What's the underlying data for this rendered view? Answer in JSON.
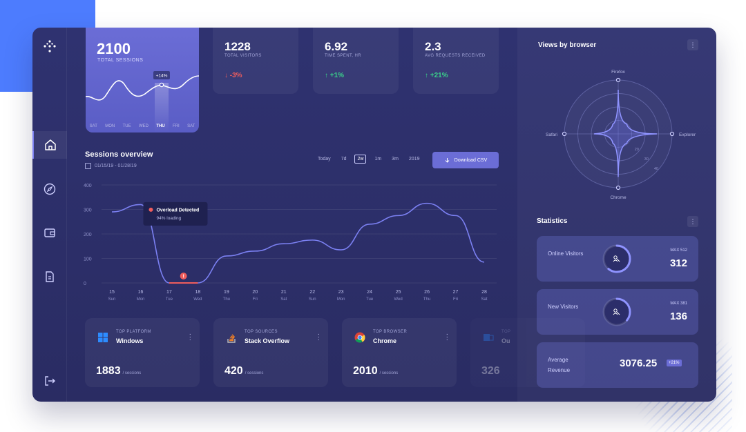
{
  "top_sessions": {
    "value": "2100",
    "label": "TOTAL SESSIONS",
    "badge": "+14%",
    "days": [
      "SAT",
      "MON",
      "TUE",
      "WED",
      "THU",
      "FRI",
      "SAT"
    ],
    "active_day": "THU"
  },
  "stats": [
    {
      "value": "1228",
      "label": "TOTAL VISITORS",
      "change": "↓ -3%",
      "direction": "down"
    },
    {
      "value": "6.92",
      "label": "TIME SPENT, HR",
      "change": "↑ +1%",
      "direction": "up"
    },
    {
      "value": "2.3",
      "label": "AVG REQUESTS RECEIVED",
      "change": "↑ +21%",
      "direction": "up"
    }
  ],
  "overview": {
    "title": "Sessions overview",
    "date_range": "01/15/19 - 01/28/19",
    "ranges": [
      "Today",
      "7d",
      "2w",
      "1m",
      "3m",
      "2019"
    ],
    "selected_range": "2w",
    "download_label": "Download CSV",
    "tooltip_title": "Overload Detected",
    "tooltip_sub": "94% loading"
  },
  "chart_data": {
    "type": "line",
    "yticks": [
      "400",
      "300",
      "200",
      "100",
      "0"
    ],
    "ylim": [
      0,
      400
    ],
    "x": [
      "15",
      "16",
      "17",
      "18",
      "19",
      "20",
      "21",
      "22",
      "23",
      "24",
      "25",
      "26",
      "27",
      "28"
    ],
    "x_sub": [
      "Sun",
      "Mon",
      "Tue",
      "Wed",
      "Thu",
      "Fri",
      "Sat",
      "Sun",
      "Mon",
      "Tue",
      "Wed",
      "Thu",
      "Fri",
      "Sat"
    ],
    "values": [
      290,
      320,
      0,
      0,
      110,
      130,
      160,
      175,
      135,
      240,
      275,
      325,
      275,
      85
    ]
  },
  "bottom_cards": [
    {
      "small": "TOP PLATFORM",
      "name": "Windows",
      "value": "1883",
      "unit": "/ sessions",
      "icon": "windows-icon"
    },
    {
      "small": "TOP SOURCES",
      "name": "Stack Overflow",
      "value": "420",
      "unit": "/ sessions",
      "icon": "stackoverflow-icon"
    },
    {
      "small": "TOP BROWSER",
      "name": "Chrome",
      "value": "2010",
      "unit": "/ sessions",
      "icon": "chrome-icon"
    },
    {
      "small": "TOP",
      "name": "Ou",
      "value": "326",
      "unit": "",
      "icon": "outlook-icon"
    }
  ],
  "browser_views": {
    "title": "Views by browser",
    "axes": [
      "Firefox",
      "Explorer",
      "Chrome",
      "Safari"
    ],
    "ring_labels": [
      "20",
      "30",
      "40"
    ],
    "values": [
      0.82,
      0.72,
      0.8,
      0.45
    ]
  },
  "statistics": {
    "title": "Statistics",
    "cards": [
      {
        "label": "Online Visitors",
        "max": "MAX 512",
        "value": "312",
        "fraction": 0.61
      },
      {
        "label": "New Visitors",
        "max": "MAX 381",
        "value": "136",
        "fraction": 0.36
      },
      {
        "label": "Average Revenue",
        "value": "3076.25",
        "badge": "+21%"
      }
    ]
  },
  "colors": {
    "accent": "#6b6dd6",
    "background": "#2f3270",
    "positive": "#3ad18a",
    "negative": "#f05d5d"
  }
}
